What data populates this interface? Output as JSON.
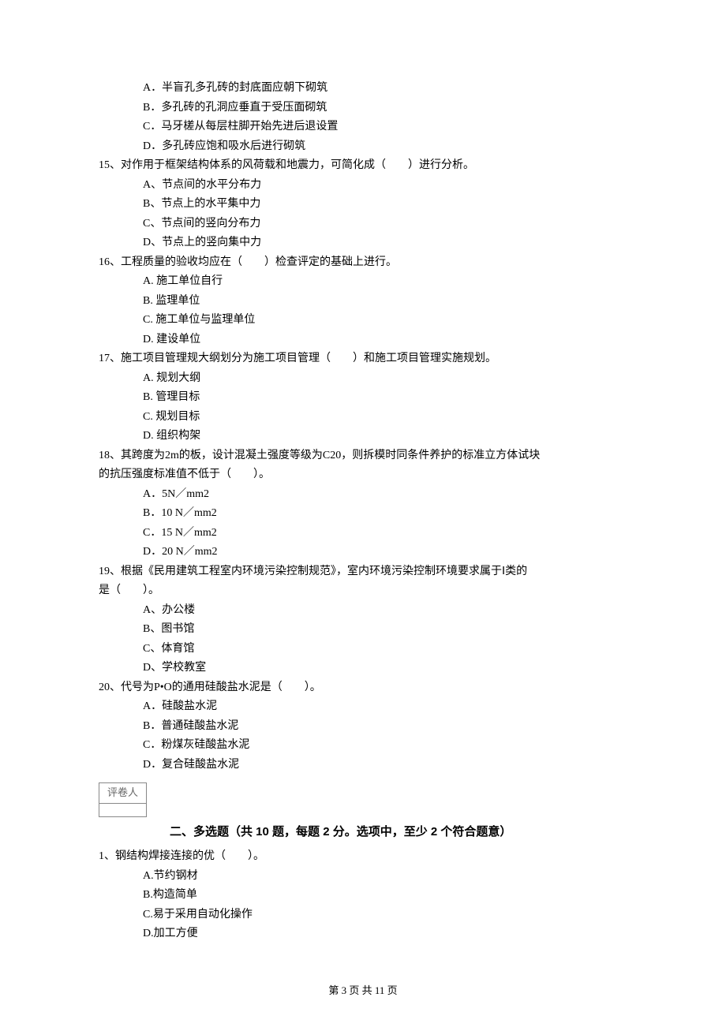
{
  "q14_options": {
    "a": "A．半盲孔多孔砖的封底面应朝下砌筑",
    "b": "B．多孔砖的孔洞应垂直于受压面砌筑",
    "c": "C．马牙槎从每层柱脚开始先进后退设置",
    "d": "D．多孔砖应饱和吸水后进行砌筑"
  },
  "q15": {
    "text": "15、对作用于框架结构体系的风荷载和地震力，可简化成（　　）进行分析。",
    "a": "A、节点间的水平分布力",
    "b": "B、节点上的水平集中力",
    "c": "C、节点间的竖向分布力",
    "d": "D、节点上的竖向集中力"
  },
  "q16": {
    "text": "16、工程质量的验收均应在（　　）检查评定的基础上进行。",
    "a": "A. 施工单位自行",
    "b": "B. 监理单位",
    "c": "C. 施工单位与监理单位",
    "d": "D. 建设单位"
  },
  "q17": {
    "text": "17、施工项目管理规大纲划分为施工项目管理（　　）和施工项目管理实施规划。",
    "a": "A. 规划大纲",
    "b": "B. 管理目标",
    "c": "C. 规划目标",
    "d": "D. 组织构架"
  },
  "q18": {
    "text1": "18、其跨度为2m的板，设计混凝土强度等级为C20，则拆模时同条件养护的标准立方体试块",
    "text2": "的抗压强度标准值不低于（　　）。",
    "a": "A．5N／mm2",
    "b": "B．10 N／mm2",
    "c": "C．15 N／mm2",
    "d": "D．20 N／mm2"
  },
  "q19": {
    "text1": "19、根据《民用建筑工程室内环境污染控制规范》，室内环境污染控制环境要求属于Ⅰ类的",
    "text2": "是（　　）。",
    "a": "A、办公楼",
    "b": "B、图书馆",
    "c": "C、体育馆",
    "d": "D、学校教室"
  },
  "q20": {
    "text": "20、代号为P•O的通用硅酸盐水泥是（　　）。",
    "a": "A．硅酸盐水泥",
    "b": "B．普通硅酸盐水泥",
    "c": "C．粉煤灰硅酸盐水泥",
    "d": "D．复合硅酸盐水泥"
  },
  "grader_label": "评卷人",
  "section2_title": "二、多选题（共 10 题，每题 2 分。选项中，至少 2 个符合题意）",
  "mq1": {
    "text": "1、钢结构焊接连接的优（　　）。",
    "a": "A.节约钢材",
    "b": "B.构造简单",
    "c": "C.易于采用自动化操作",
    "d": "D.加工方便"
  },
  "footer": "第 3 页 共 11 页"
}
